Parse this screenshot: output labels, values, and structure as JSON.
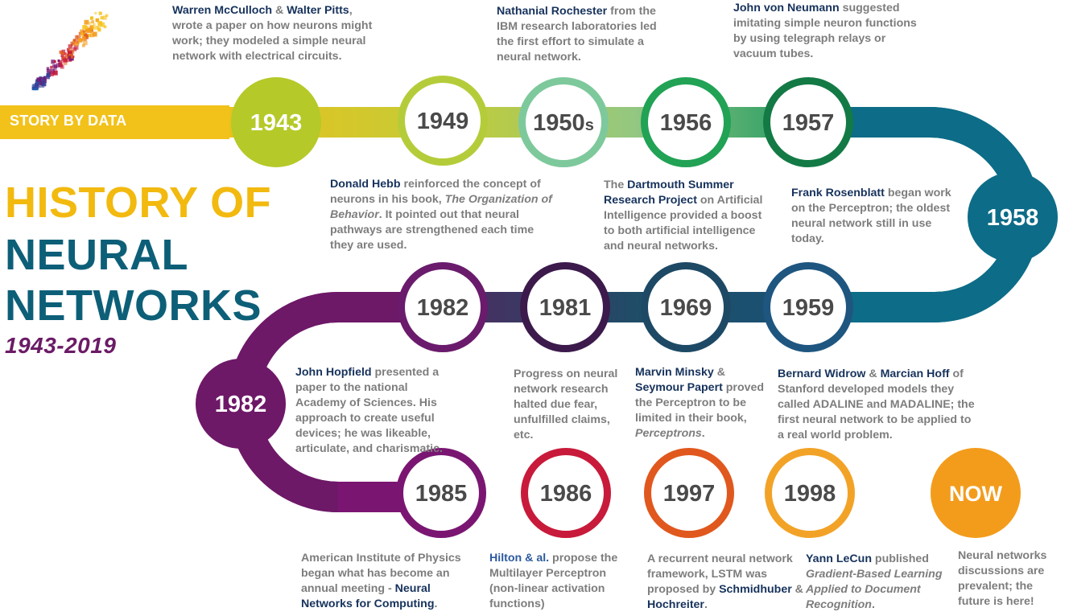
{
  "header": {
    "story_label": "STORY BY DATA",
    "title_line1": "HISTORY OF",
    "title_line2": "NEURAL",
    "title_line3": "NETWORKS",
    "years": "1943-2019"
  },
  "colors": {
    "yellow": "#f2b90f",
    "lime": "#b2c930",
    "teal": "#0d6c87",
    "navy": "#1b4b6b",
    "purple": "#6e1868",
    "red": "#c81a3a",
    "orange": "#f39c1c"
  },
  "nodes": [
    {
      "id": "1943",
      "label": "1943",
      "color": "#b5c929",
      "filled": true
    },
    {
      "id": "1949",
      "label": "1949",
      "color": "#b5cc3a",
      "filled": false
    },
    {
      "id": "1950s",
      "label": "1950",
      "suffix": "s",
      "color": "#7ec99c",
      "filled": false
    },
    {
      "id": "1956",
      "label": "1956",
      "color": "#21a255",
      "filled": false
    },
    {
      "id": "1957",
      "label": "1957",
      "color": "#137a45",
      "filled": false
    },
    {
      "id": "1958",
      "label": "1958",
      "color": "#0d6c87",
      "filled": true
    },
    {
      "id": "1959",
      "label": "1959",
      "color": "#1e5680",
      "filled": false
    },
    {
      "id": "1969",
      "label": "1969",
      "color": "#1d4965",
      "filled": false
    },
    {
      "id": "1981",
      "label": "1981",
      "color": "#3c1a4c",
      "filled": false
    },
    {
      "id": "1982a",
      "label": "1982",
      "color": "#6a1b6c",
      "filled": false
    },
    {
      "id": "1982b",
      "label": "1982",
      "color": "#6e1868",
      "filled": true
    },
    {
      "id": "1985",
      "label": "1985",
      "color": "#7a1672",
      "filled": false
    },
    {
      "id": "1986",
      "label": "1986",
      "color": "#c81a3a",
      "filled": false
    },
    {
      "id": "1997",
      "label": "1997",
      "color": "#e0581e",
      "filled": false
    },
    {
      "id": "1998",
      "label": "1998",
      "color": "#f2a327",
      "filled": false
    },
    {
      "id": "now",
      "label": "NOW",
      "color": "#f39c1c",
      "filled": true
    }
  ],
  "captions": {
    "c1943": {
      "name1": "Warren McCulloch",
      "amp": " & ",
      "name2": "Walter Pitts",
      "text": ", wrote a paper on how neurons might work; they modeled a simple neural network with electrical circuits."
    },
    "c1949": {
      "name": "Donald Hebb",
      "text1": " reinforced the concept of neurons in his book, ",
      "book": "The Organization of Behavior",
      "text2": ". It pointed out that neural pathways are strengthened each time they are used."
    },
    "c1950s": {
      "name": "Nathanial Rochester",
      "text": " from the IBM research laboratories led the first effort to simulate a neural network."
    },
    "c1956": {
      "pre": "The ",
      "name": "Dartmouth Summer Research Project",
      "text": " on Artificial Intelligence provided a boost to both artificial intelligence and neural networks."
    },
    "c1957": {
      "name": "John von Neumann",
      "text": " suggested imitating simple neuron functions by using telegraph relays or vacuum tubes."
    },
    "c1958": {
      "name": "Frank Rosenblatt",
      "text": " began work on the Perceptron; the oldest neural network still in use today."
    },
    "c1959": {
      "name1": "Bernard Widrow",
      "amp": " & ",
      "name2": "Marcian Hoff",
      "text": " of Stanford developed models they called ADALINE and MADALINE; the first neural network to be applied to a real world problem."
    },
    "c1969": {
      "name1": "Marvin Minsky",
      "amp": " & ",
      "name2": "Seymour Papert",
      "text": " proved the Perceptron to be limited in their book, ",
      "book": "Perceptrons",
      "end": "."
    },
    "c1981": {
      "text": "Progress on neural network research halted due fear, unfulfilled claims, etc."
    },
    "c1982": {
      "name": "John Hopfield",
      "text": " presented a paper to the national Academy of Sciences. His approach to create useful devices; he was likeable, articulate, and charismatic."
    },
    "c1985": {
      "text": "American Institute of Physics began what has become an annual meeting - ",
      "name": "Neural Networks for Computing",
      "end": "."
    },
    "c1986": {
      "name": "Hilton & al.",
      "text": " propose the Multilayer  Perceptron (non-linear activation functions)"
    },
    "c1997": {
      "text": "A recurrent neural network framework, LSTM was proposed by ",
      "name1": "Schmidhuber",
      "amp": " & ",
      "name2": "Hochreiter",
      "end": "."
    },
    "c1998": {
      "name": "Yann LeCun",
      "text": " published ",
      "book": "Gradient-Based Learning Applied to Document Recognition",
      "end": "."
    },
    "cnow": {
      "text": "Neural networks discussions are prevalent; the future is here!"
    }
  }
}
